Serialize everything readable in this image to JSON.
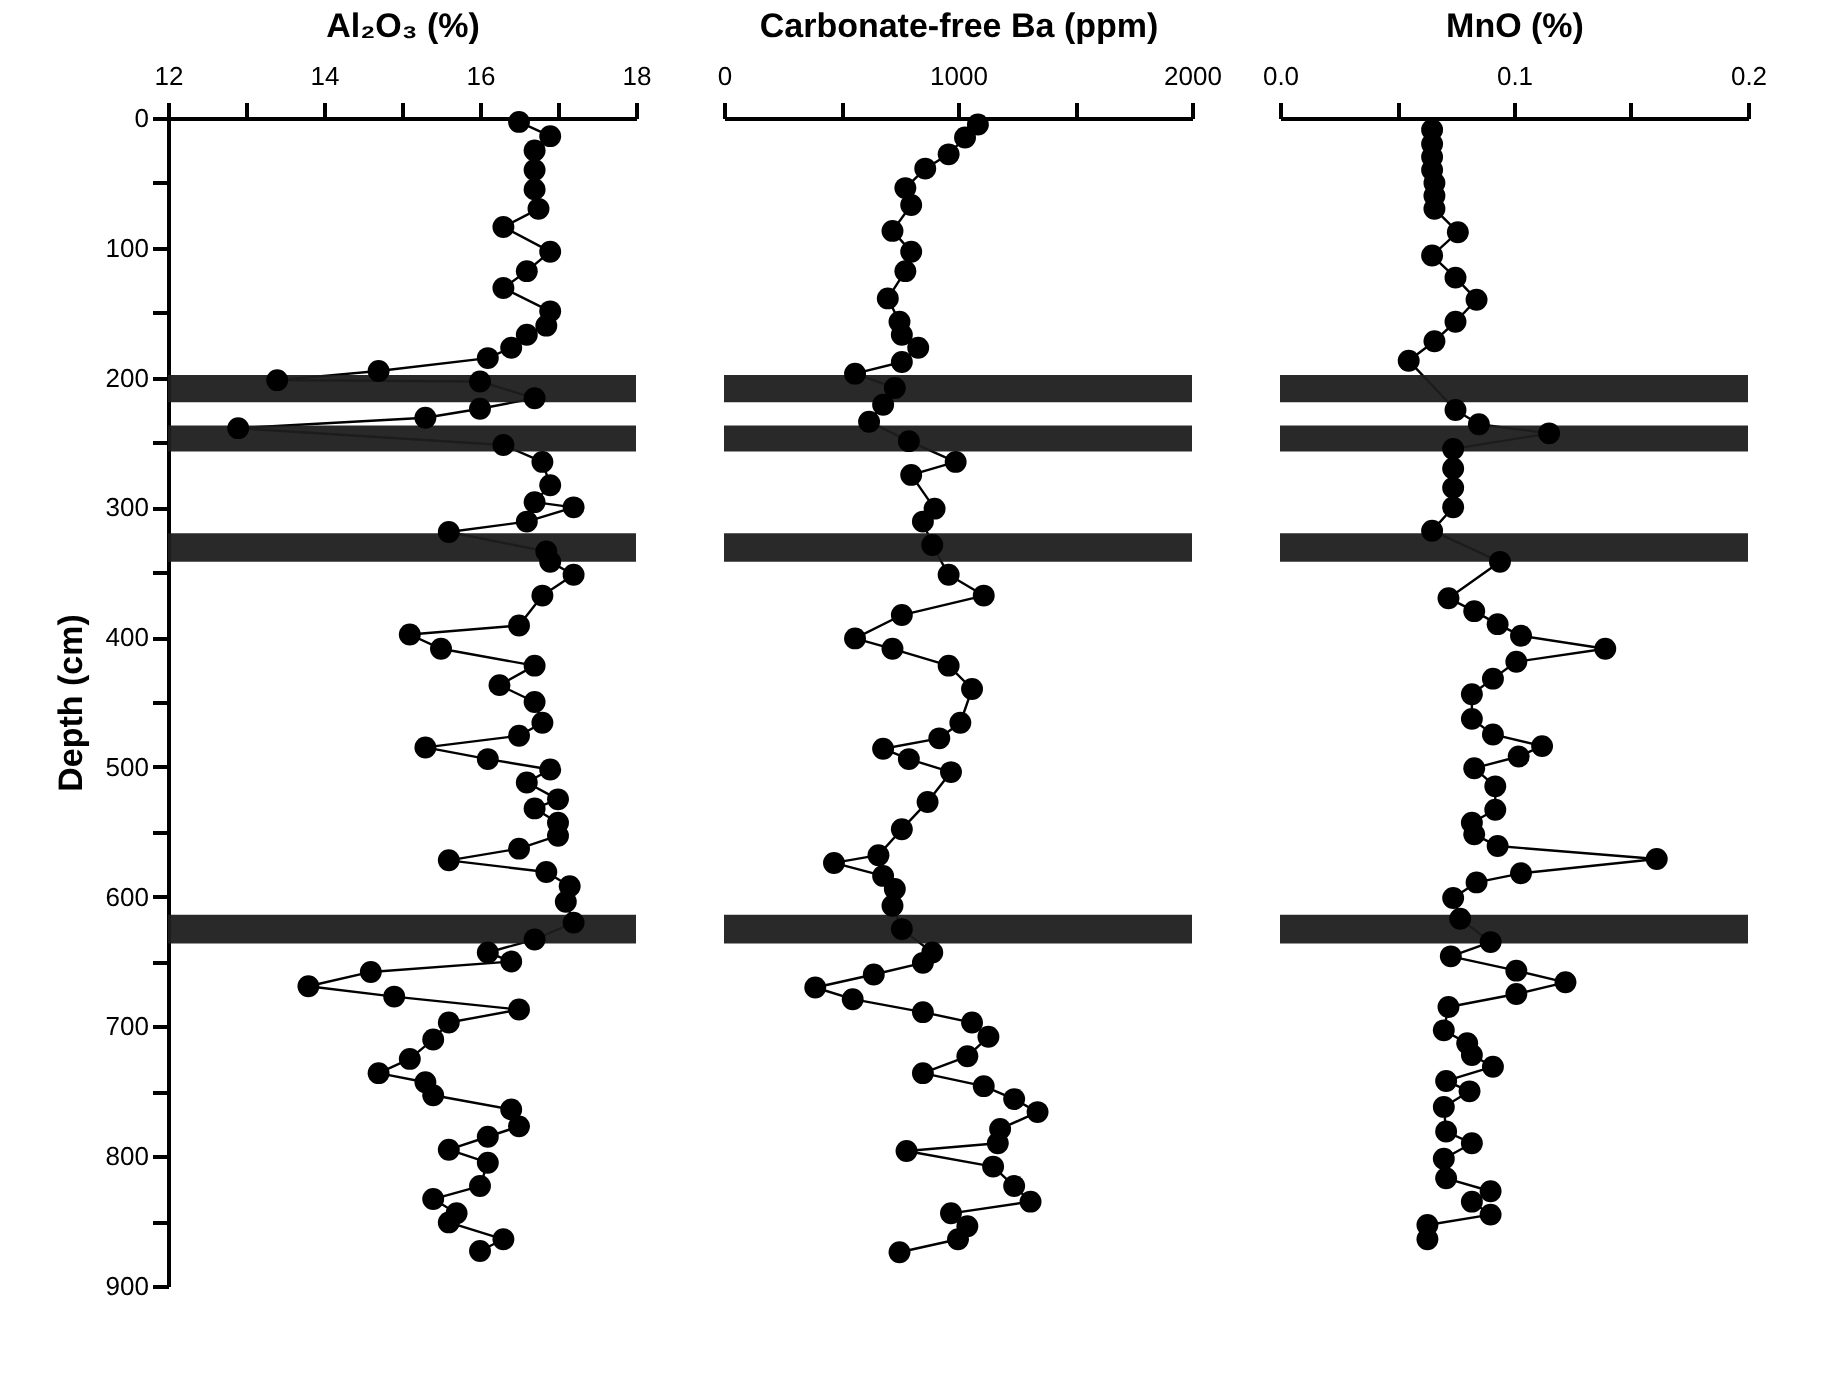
{
  "chart_data": [
    {
      "type": "line",
      "xlabel": "Al₂O₃ (%)",
      "ylabel": "Depth (cm)",
      "marker": "circle",
      "line_style": "solid",
      "xlim": [
        12,
        18
      ],
      "xticks": [
        12,
        {
          "value": 13,
          "label": null
        },
        14,
        {
          "value": 15,
          "label": null
        },
        16,
        {
          "value": 17,
          "label": null
        },
        18
      ],
      "ylim": [
        900,
        0
      ],
      "yticks": [
        0,
        {
          "value": 50,
          "label": null
        },
        100,
        {
          "value": 150,
          "label": null
        },
        200,
        {
          "value": 250,
          "label": null
        },
        300,
        {
          "value": 350,
          "label": null
        },
        400,
        {
          "value": 450,
          "label": null
        },
        500,
        {
          "value": 550,
          "label": null
        },
        600,
        {
          "value": 650,
          "label": null
        },
        700,
        {
          "value": 750,
          "label": null
        },
        800,
        {
          "value": 850,
          "label": null
        },
        900
      ],
      "bands": [
        {
          "axis": "y",
          "from": 198,
          "to": 219,
          "color": "#1e1e1e"
        },
        {
          "axis": "y",
          "from": 237,
          "to": 257,
          "color": "#1e1e1e"
        },
        {
          "axis": "y",
          "from": 320,
          "to": 342,
          "color": "#1e1e1e"
        },
        {
          "axis": "y",
          "from": 614,
          "to": 636,
          "color": "#1e1e1e"
        }
      ],
      "series": [
        {
          "color": "#000000",
          "x": [
            16.5,
            16.9,
            16.7,
            16.7,
            16.7,
            16.75,
            16.3,
            16.9,
            16.6,
            16.3,
            16.9,
            16.85,
            16.6,
            16.4,
            16.1,
            14.7,
            13.4,
            16.0,
            16.7,
            16.0,
            15.3,
            12.9,
            16.3,
            16.8,
            16.9,
            16.7,
            17.2,
            16.6,
            15.6,
            16.85,
            16.9,
            17.2,
            16.8,
            16.5,
            15.1,
            15.5,
            16.7,
            16.25,
            16.7,
            16.8,
            16.5,
            15.3,
            16.1,
            16.9,
            16.6,
            17.0,
            16.7,
            17.0,
            17.0,
            16.5,
            15.6,
            16.85,
            17.15,
            17.1,
            17.2,
            16.7,
            16.1,
            16.4,
            14.6,
            13.8,
            14.9,
            16.5,
            15.6,
            15.4,
            15.1,
            14.7,
            15.3,
            15.4,
            16.4,
            16.5,
            16.1,
            15.6,
            16.1,
            16.0,
            15.4,
            15.7,
            15.6,
            16.3,
            16.0
          ],
          "values": [
            3,
            14,
            25,
            40,
            55,
            70,
            84,
            103,
            118,
            131,
            149,
            160,
            167,
            177,
            185,
            195,
            202,
            203,
            216,
            224,
            231,
            239,
            252,
            265,
            283,
            296,
            300,
            311,
            319,
            334,
            342,
            352,
            368,
            391,
            398,
            409,
            422,
            437,
            450,
            466,
            476,
            485,
            494,
            502,
            512,
            525,
            532,
            543,
            553,
            563,
            572,
            581,
            592,
            604,
            620,
            633,
            643,
            650,
            658,
            669,
            677,
            687,
            697,
            710,
            725,
            736,
            743,
            753,
            764,
            777,
            785,
            795,
            805,
            823,
            833,
            844,
            851,
            864,
            873
          ]
        }
      ]
    },
    {
      "type": "line",
      "xlabel": "Carbonate-free Ba (ppm)",
      "marker": "circle",
      "line_style": "solid",
      "tick_labels": "x",
      "xlim": [
        0,
        2000
      ],
      "xticks": [
        0,
        {
          "value": 500,
          "label": null
        },
        1000,
        {
          "value": 1500,
          "label": null
        },
        2000
      ],
      "ylim": [
        900,
        0
      ],
      "bands": [
        {
          "axis": "y",
          "from": 198,
          "to": 219,
          "color": "#1e1e1e"
        },
        {
          "axis": "y",
          "from": 237,
          "to": 257,
          "color": "#1e1e1e"
        },
        {
          "axis": "y",
          "from": 320,
          "to": 342,
          "color": "#1e1e1e"
        },
        {
          "axis": "y",
          "from": 614,
          "to": 636,
          "color": "#1e1e1e"
        }
      ],
      "series": [
        {
          "color": "#000000",
          "x": [
            1085,
            1030,
            960,
            860,
            775,
            800,
            720,
            800,
            775,
            700,
            750,
            760,
            830,
            760,
            560,
            730,
            680,
            620,
            790,
            990,
            800,
            900,
            850,
            890,
            960,
            1110,
            760,
            560,
            720,
            960,
            1060,
            1010,
            920,
            680,
            790,
            970,
            870,
            760,
            660,
            470,
            680,
            730,
            720,
            760,
            890,
            850,
            640,
            390,
            550,
            850,
            1060,
            1130,
            1040,
            850,
            1110,
            1240,
            1340,
            1180,
            1170,
            780,
            1150,
            1240,
            1310,
            970,
            1040,
            1000,
            750
          ],
          "values": [
            5,
            15,
            28,
            39,
            54,
            67,
            87,
            103,
            118,
            139,
            157,
            167,
            177,
            188,
            197,
            208,
            221,
            234,
            249,
            265,
            275,
            301,
            311,
            329,
            352,
            368,
            383,
            401,
            409,
            422,
            440,
            466,
            478,
            486,
            494,
            504,
            527,
            548,
            568,
            574,
            584,
            594,
            607,
            625,
            643,
            651,
            660,
            670,
            679,
            689,
            697,
            708,
            723,
            736,
            746,
            756,
            766,
            779,
            790,
            796,
            808,
            823,
            835,
            844,
            854,
            864,
            874
          ]
        }
      ]
    },
    {
      "type": "line",
      "xlabel": "MnO (%)",
      "marker": "circle",
      "line_style": "solid",
      "tick_labels": "x",
      "xlim": [
        0,
        0.2
      ],
      "xticks": [
        {
          "value": 0,
          "label": "0.0"
        },
        {
          "value": 0.05,
          "label": null
        },
        0.1,
        {
          "value": 0.15,
          "label": null
        },
        0.2
      ],
      "ylim": [
        900,
        0
      ],
      "bands": [
        {
          "axis": "y",
          "from": 198,
          "to": 219,
          "color": "#1e1e1e"
        },
        {
          "axis": "y",
          "from": 237,
          "to": 257,
          "color": "#1e1e1e"
        },
        {
          "axis": "y",
          "from": 320,
          "to": 342,
          "color": "#1e1e1e"
        },
        {
          "axis": "y",
          "from": 614,
          "to": 636,
          "color": "#1e1e1e"
        }
      ],
      "series": [
        {
          "color": "#000000",
          "x": [
            0.065,
            0.065,
            0.065,
            0.065,
            0.066,
            0.066,
            0.066,
            0.076,
            0.065,
            0.075,
            0.084,
            0.075,
            0.066,
            0.055,
            0.075,
            0.085,
            0.115,
            0.074,
            0.074,
            0.074,
            0.074,
            0.065,
            0.094,
            0.072,
            0.083,
            0.093,
            0.103,
            0.139,
            0.101,
            0.091,
            0.082,
            0.082,
            0.091,
            0.112,
            0.102,
            0.083,
            0.092,
            0.092,
            0.082,
            0.083,
            0.093,
            0.161,
            0.103,
            0.084,
            0.074,
            0.077,
            0.09,
            0.073,
            0.101,
            0.122,
            0.101,
            0.072,
            0.07,
            0.08,
            0.082,
            0.091,
            0.071,
            0.081,
            0.07,
            0.071,
            0.082,
            0.07,
            0.071,
            0.09,
            0.082,
            0.09,
            0.063,
            0.063
          ],
          "values": [
            9,
            20,
            30,
            40,
            50,
            60,
            70,
            88,
            106,
            123,
            140,
            157,
            172,
            187,
            225,
            236,
            243,
            255,
            270,
            285,
            300,
            318,
            342,
            370,
            380,
            390,
            399,
            409,
            419,
            432,
            444,
            463,
            475,
            484,
            492,
            501,
            515,
            533,
            543,
            552,
            561,
            571,
            582,
            589,
            601,
            617,
            635,
            646,
            657,
            666,
            675,
            685,
            703,
            713,
            722,
            731,
            742,
            750,
            762,
            781,
            790,
            802,
            817,
            827,
            835,
            845,
            853,
            864
          ]
        }
      ]
    }
  ]
}
